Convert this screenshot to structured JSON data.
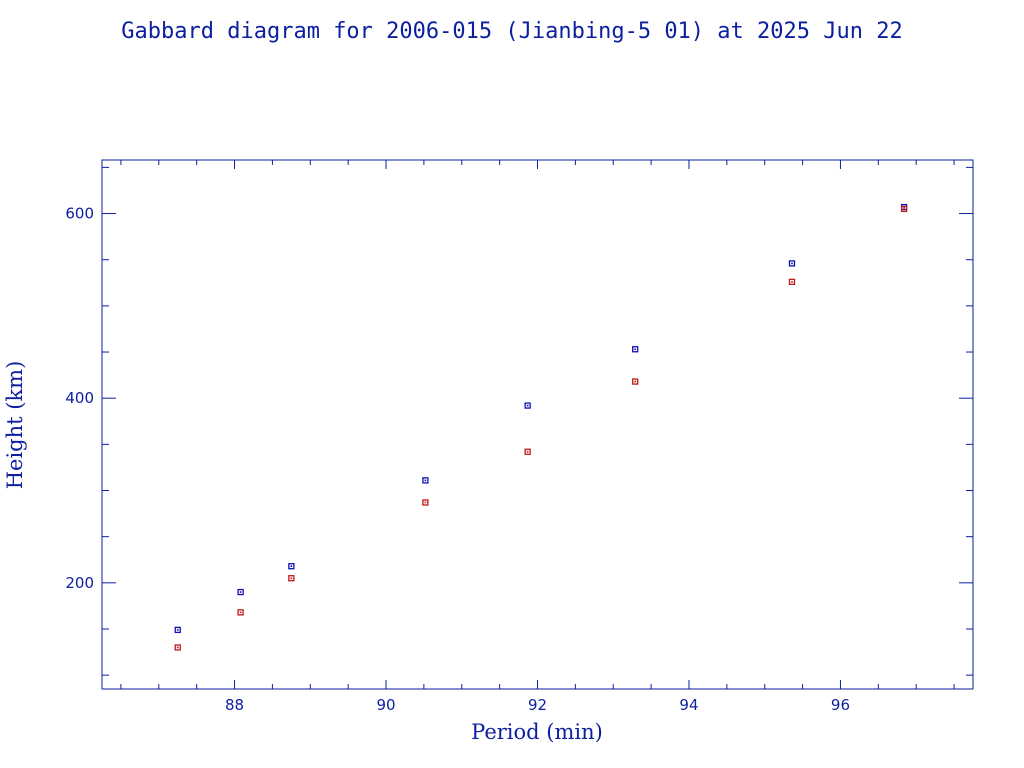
{
  "chart_data": {
    "type": "scatter",
    "title": "Gabbard diagram for 2006-015 (Jianbing-5 01) at 2025 Jun 22",
    "xlabel": "Period (min)",
    "ylabel": "Height (km)",
    "xlim": [
      86.25,
      97.75
    ],
    "ylim": [
      85,
      658
    ],
    "x_major_ticks": [
      88,
      90,
      92,
      94,
      96
    ],
    "x_tick_labels": [
      "88",
      "90",
      "92",
      "94",
      "96"
    ],
    "x_minor_step": 0.5,
    "y_major_ticks": [
      200,
      400,
      600
    ],
    "y_tick_labels": [
      "200",
      "400",
      "600"
    ],
    "y_minor_step": 50,
    "grid": false,
    "series": [
      {
        "color": "#1010b0",
        "points": [
          {
            "x": 87.25,
            "y": 149
          },
          {
            "x": 88.08,
            "y": 190
          },
          {
            "x": 88.75,
            "y": 218
          },
          {
            "x": 90.52,
            "y": 311
          },
          {
            "x": 91.87,
            "y": 392
          },
          {
            "x": 93.29,
            "y": 453
          },
          {
            "x": 95.36,
            "y": 546
          },
          {
            "x": 96.84,
            "y": 607
          }
        ]
      },
      {
        "color": "#c01818",
        "points": [
          {
            "x": 87.25,
            "y": 130
          },
          {
            "x": 88.08,
            "y": 168
          },
          {
            "x": 88.75,
            "y": 205
          },
          {
            "x": 90.52,
            "y": 287
          },
          {
            "x": 91.87,
            "y": 342
          },
          {
            "x": 93.29,
            "y": 418
          },
          {
            "x": 95.36,
            "y": 526
          },
          {
            "x": 96.84,
            "y": 605
          }
        ]
      }
    ]
  }
}
